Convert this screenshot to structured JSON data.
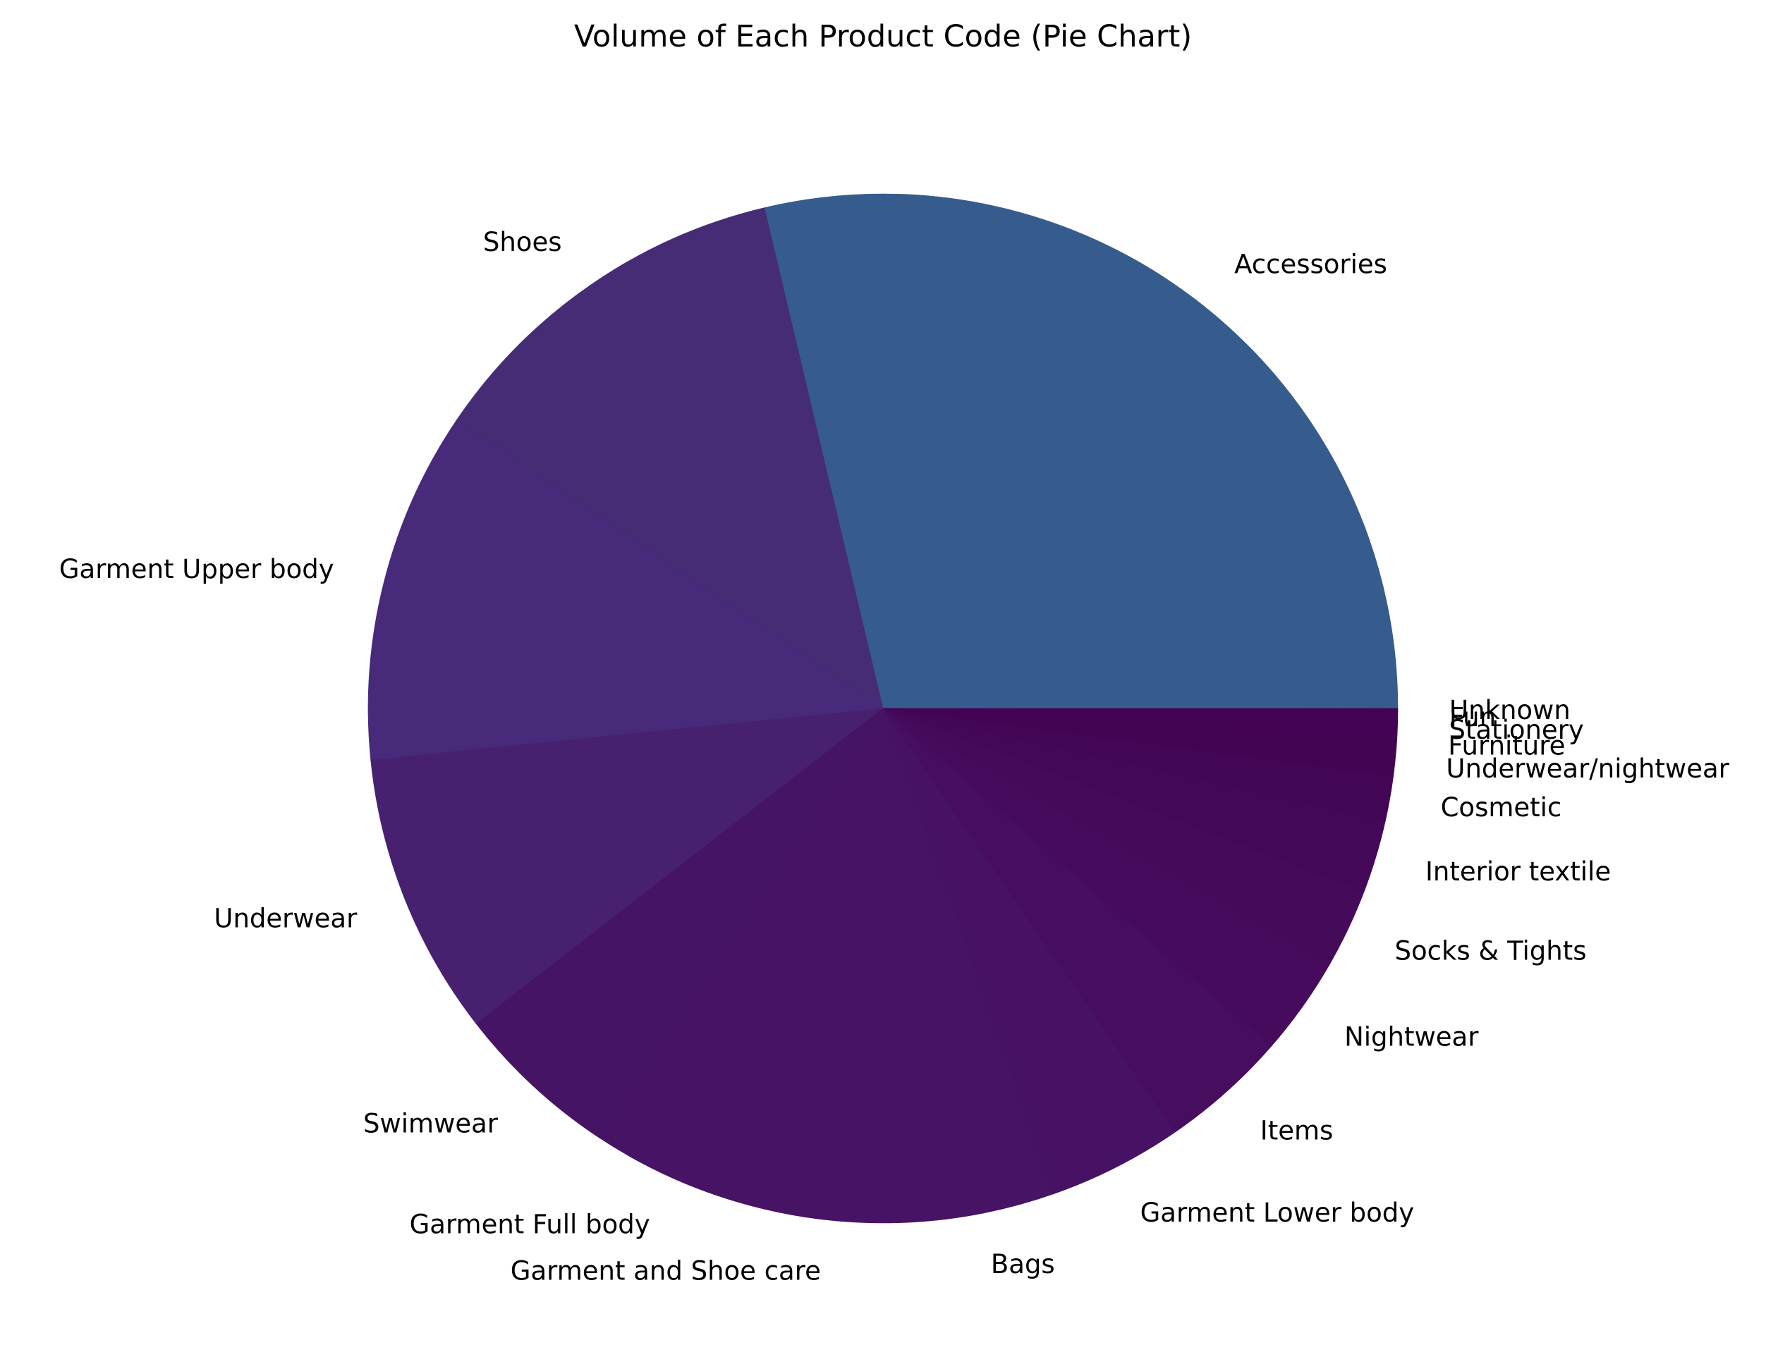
{
  "chart_data": {
    "type": "pie",
    "title": "Volume of Each Product Code (Pie Chart)",
    "start_angle_deg": 0,
    "direction": "counterclockwise",
    "units": "percent of total",
    "slices": [
      {
        "label": "Accessories",
        "value": 28.7,
        "color": "#365c8d"
      },
      {
        "label": "Shoes",
        "value": 11.8,
        "color": "#462c75"
      },
      {
        "label": "Garment Upper body",
        "value": 11.1,
        "color": "#472a79"
      },
      {
        "label": "Underwear",
        "value": 8.9,
        "color": "#47206f"
      },
      {
        "label": "Swimwear",
        "value": 5.2,
        "color": "#461465"
      },
      {
        "label": "Garment Full body",
        "value": 5.1,
        "color": "#471465"
      },
      {
        "label": "Garment and Shoe care",
        "value": 4.9,
        "color": "#471365"
      },
      {
        "label": "Bags",
        "value": 4.7,
        "color": "#461365"
      },
      {
        "label": "Garment Lower body",
        "value": 4.2,
        "color": "#471263"
      },
      {
        "label": "Items",
        "value": 4.0,
        "color": "#470e60"
      },
      {
        "label": "Nightwear",
        "value": 3.1,
        "color": "#460b5d"
      },
      {
        "label": "Socks & Tights",
        "value": 2.5,
        "color": "#450a5a"
      },
      {
        "label": "Interior textile",
        "value": 2.3,
        "color": "#450859"
      },
      {
        "label": "Cosmetic",
        "value": 1.4,
        "color": "#440656"
      },
      {
        "label": "Underwear/nightwear",
        "value": 0.8,
        "color": "#440454"
      },
      {
        "label": "Furniture",
        "value": 0.5,
        "color": "#440454"
      },
      {
        "label": "Stationery",
        "value": 0.4,
        "color": "#440354"
      },
      {
        "label": "Fun",
        "value": 0.3,
        "color": "#440354"
      },
      {
        "label": "Unknown",
        "value": 0.1,
        "color": "#440154"
      }
    ]
  }
}
